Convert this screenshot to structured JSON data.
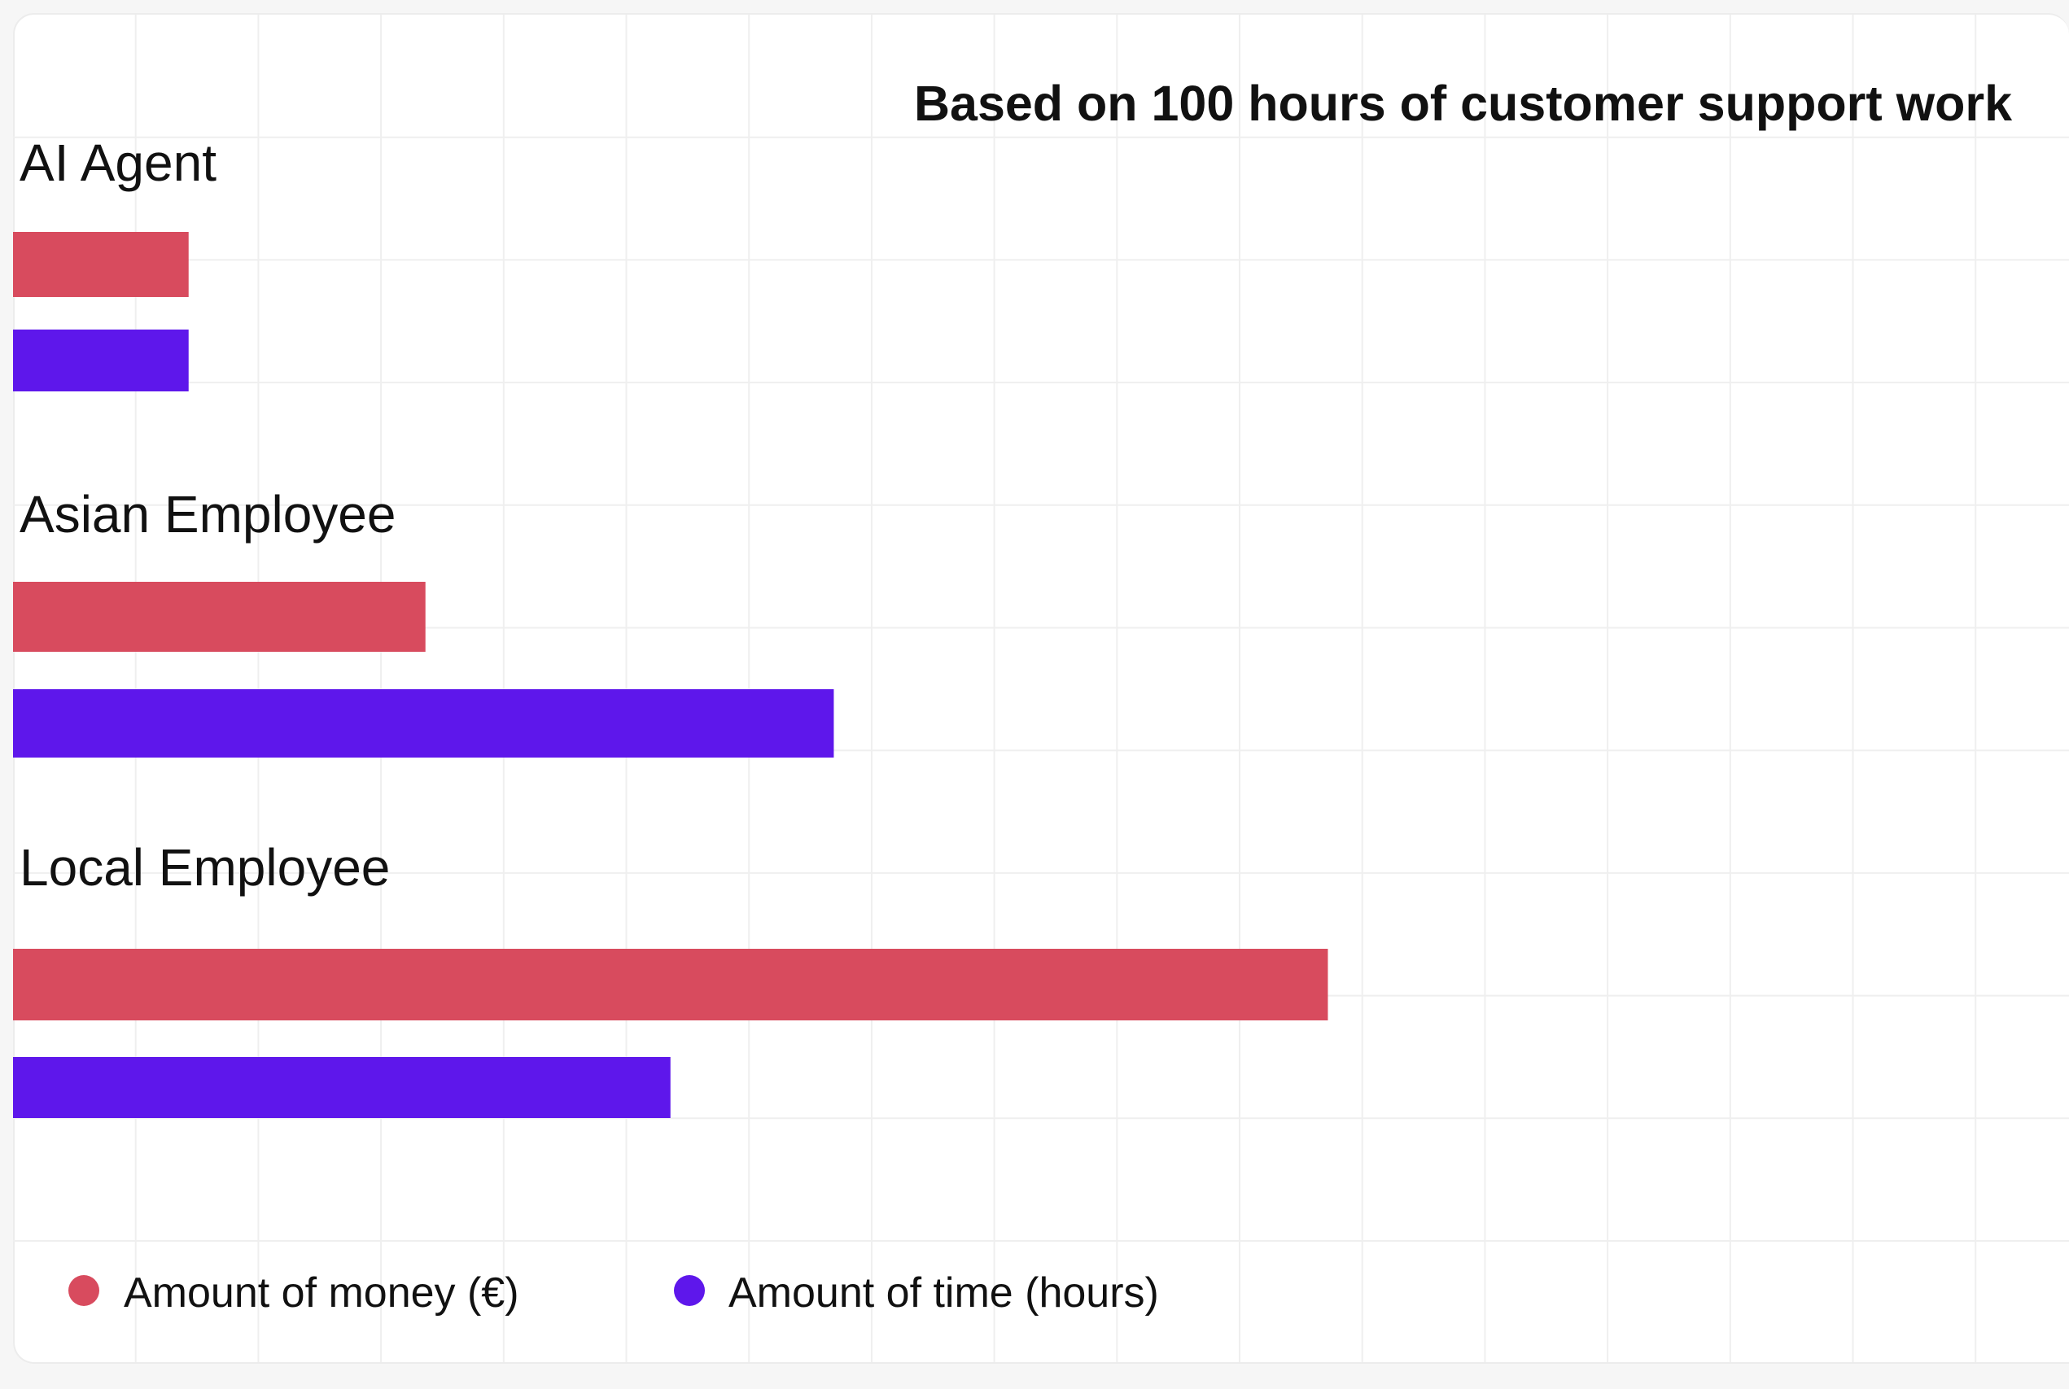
{
  "chart_data": {
    "type": "bar",
    "orientation": "horizontal",
    "title": "Based on 100 hours of customer support work",
    "categories": [
      "AI Agent",
      "Asian Employee",
      "Local Employee"
    ],
    "series": [
      {
        "name": "Amount of money (€)",
        "color": "#d84b5e",
        "values": [
          2.15,
          5.05,
          16.1
        ]
      },
      {
        "name": "Amount of time (hours)",
        "color": "#5e17eb",
        "values": [
          2.15,
          10.05,
          8.05
        ]
      }
    ],
    "xlim": [
      0,
      16.8
    ],
    "xlabel": "",
    "ylabel": "",
    "grid": true,
    "legend_placement": "bottom-left"
  },
  "colors": {
    "grid": "#efefef",
    "text": "#111111",
    "background": "#ffffff"
  }
}
